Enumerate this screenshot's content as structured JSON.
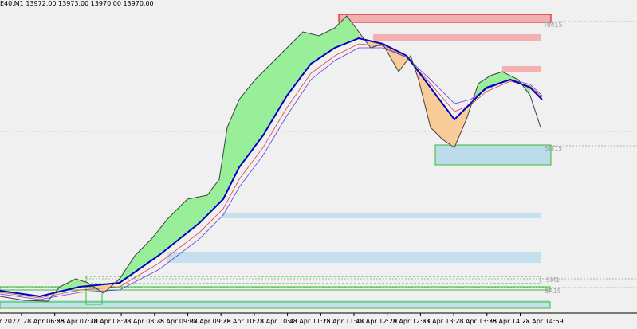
{
  "header": {
    "symbol_info": "E40,M1  13972.00 13973.00 13970.00 13970.00"
  },
  "zone_labels": [
    "RM15",
    "SM15",
    "SM1",
    "SR15"
  ],
  "time_labels": [
    "r 2022",
    "28 Apr 06:55",
    "28 Apr 07:30",
    "28 Apr 08:03",
    "28 Apr 08:35",
    "28 Apr 09:07",
    "28 Apr 09:39",
    "28 Apr 10:11",
    "28 Apr 10:43",
    "28 Apr 11:15",
    "28 Apr 11:47",
    "28 Apr 12:19",
    "28 Apr 12:51",
    "28 Apr 13:23",
    "28 Apr 13:55",
    "28 Apr 14:27",
    "28 Apr 14:59"
  ]
}
